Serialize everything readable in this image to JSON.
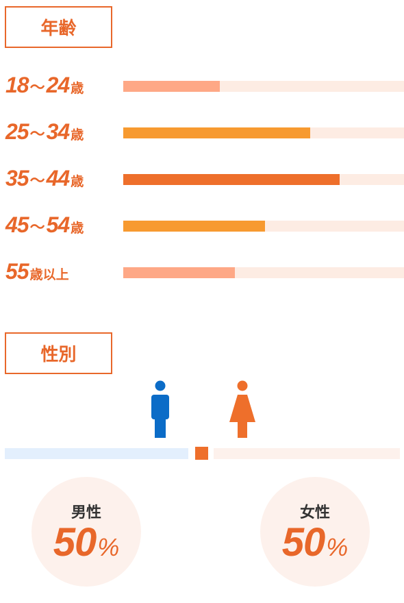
{
  "age": {
    "title": "年齢",
    "rows": [
      {
        "num1": "18",
        "tilde": "〜",
        "num2": "24",
        "unit": "歳",
        "value": 0.345,
        "color": "#fea886"
      },
      {
        "num1": "25",
        "tilde": "〜",
        "num2": "34",
        "unit": "歳",
        "value": 0.665,
        "color": "#f79a30"
      },
      {
        "num1": "35",
        "tilde": "〜",
        "num2": "44",
        "unit": "歳",
        "value": 0.77,
        "color": "#ee6f2b"
      },
      {
        "num1": "45",
        "tilde": "〜",
        "num2": "54",
        "unit": "歳",
        "value": 0.505,
        "color": "#f79a30"
      },
      {
        "num1": "55",
        "tilde": "",
        "num2": "",
        "unit": "歳以上",
        "value": 0.398,
        "color": "#fea886"
      }
    ],
    "track_color": "#fdece3"
  },
  "gender": {
    "title": "性別",
    "male": {
      "label": "男性",
      "value": "50",
      "unit": "%",
      "color": "#0b6cc7",
      "icon": "male-person-icon"
    },
    "female": {
      "label": "女性",
      "value": "50",
      "unit": "%",
      "color": "#ee6f2b",
      "icon": "female-person-icon"
    }
  },
  "chart_data": [
    {
      "type": "bar",
      "title": "年齢",
      "categories": [
        "18〜24歳",
        "25〜34歳",
        "35〜44歳",
        "45〜54歳",
        "55歳以上"
      ],
      "values": [
        0.345,
        0.665,
        0.77,
        0.505,
        0.398
      ]
    },
    {
      "type": "bar",
      "title": "性別",
      "categories": [
        "男性",
        "女性"
      ],
      "values": [
        50,
        50
      ]
    }
  ]
}
